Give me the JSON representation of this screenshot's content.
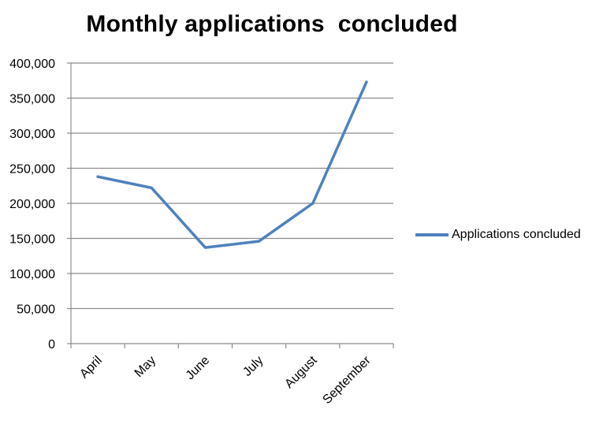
{
  "chart_data": {
    "type": "line",
    "title": "Monthly applications  concluded",
    "xlabel": "",
    "ylabel": "",
    "categories": [
      "April",
      "May",
      "June",
      "July",
      "August",
      "September"
    ],
    "series": [
      {
        "name": "Applications concluded",
        "values": [
          238000,
          222000,
          137000,
          146000,
          200000,
          373000
        ],
        "color": "#4f81bd"
      }
    ],
    "ylim": [
      0,
      400000
    ],
    "yticks": [
      "0",
      "50,000",
      "100,000",
      "150,000",
      "200,000",
      "250,000",
      "300,000",
      "350,000",
      "400,000"
    ],
    "grid": true,
    "legend_position": "right"
  }
}
